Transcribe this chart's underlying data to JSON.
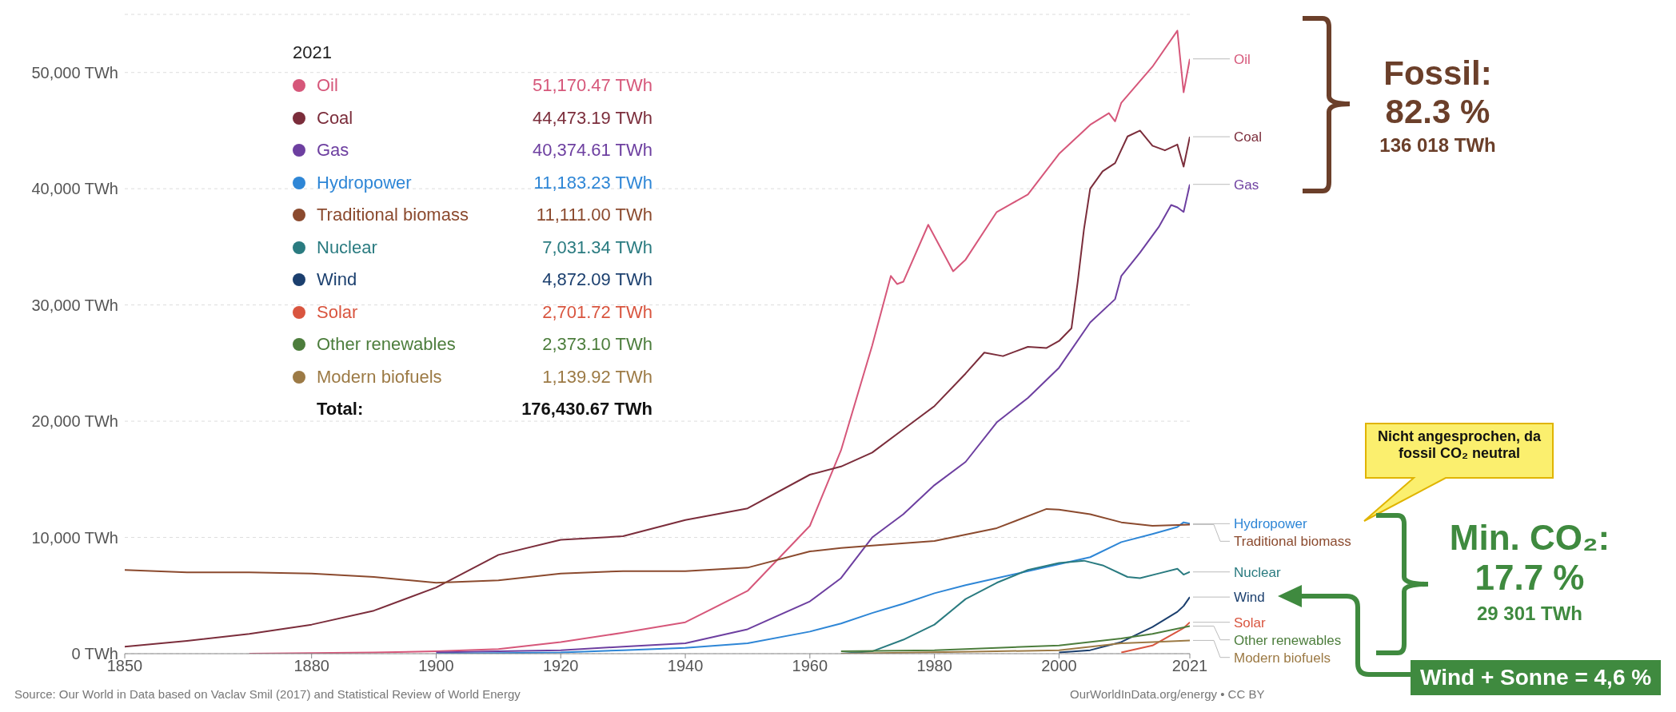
{
  "chart_data": {
    "type": "line",
    "legend_title": "2021",
    "legend": "top left",
    "grid": "y",
    "xlim": [
      1850,
      2021
    ],
    "xticks": [
      1850,
      1880,
      1900,
      1920,
      1940,
      1960,
      1980,
      2000,
      2021
    ],
    "ylim": [
      0,
      55000
    ],
    "yticks": [
      {
        "value": 0,
        "label": "0 TWh"
      },
      {
        "value": 10000,
        "label": "10,000 TWh"
      },
      {
        "value": 20000,
        "label": "20,000 TWh"
      },
      {
        "value": 30000,
        "label": "30,000 TWh"
      },
      {
        "value": 40000,
        "label": "40,000 TWh"
      },
      {
        "value": 50000,
        "label": "50,000 TWh"
      }
    ],
    "series": [
      {
        "name": "Oil",
        "color": "#d6577a",
        "x": [
          1870,
          1880,
          1890,
          1900,
          1910,
          1920,
          1930,
          1940,
          1950,
          1960,
          1965,
          1970,
          1973,
          1974,
          1975,
          1979,
          1983,
          1985,
          1990,
          1995,
          2000,
          2005,
          2008,
          2009,
          2010,
          2015,
          2019,
          2020,
          2021
        ],
        "values": [
          0,
          50,
          100,
          200,
          400,
          1000,
          1800,
          2700,
          5400,
          11000,
          17500,
          26500,
          32500,
          31800,
          32000,
          36900,
          32900,
          33900,
          38000,
          39500,
          43000,
          45500,
          46500,
          45800,
          47400,
          50500,
          53600,
          48300,
          51170.47
        ]
      },
      {
        "name": "Coal",
        "color": "#7b2d3b",
        "x": [
          1850,
          1860,
          1870,
          1880,
          1890,
          1900,
          1910,
          1920,
          1930,
          1940,
          1950,
          1960,
          1965,
          1970,
          1975,
          1980,
          1985,
          1988,
          1991,
          1995,
          1998,
          2000,
          2002,
          2003,
          2004,
          2005,
          2007,
          2009,
          2011,
          2013,
          2015,
          2017,
          2019,
          2020,
          2021
        ],
        "values": [
          600,
          1100,
          1700,
          2500,
          3700,
          5700,
          8500,
          9800,
          10100,
          11500,
          12500,
          15400,
          16100,
          17300,
          19300,
          21300,
          24100,
          25900,
          25600,
          26400,
          26300,
          26900,
          28000,
          32000,
          36500,
          40000,
          41500,
          42200,
          44500,
          45000,
          43700,
          43300,
          43800,
          41900,
          44473.19
        ]
      },
      {
        "name": "Gas",
        "color": "#6d3fa0",
        "x": [
          1900,
          1910,
          1920,
          1930,
          1940,
          1950,
          1960,
          1965,
          1970,
          1975,
          1980,
          1985,
          1990,
          1995,
          2000,
          2005,
          2009,
          2010,
          2013,
          2016,
          2018,
          2019,
          2020,
          2021
        ],
        "values": [
          100,
          200,
          300,
          600,
          900,
          2100,
          4500,
          6500,
          10000,
          12000,
          14500,
          16500,
          19900,
          22000,
          24600,
          28500,
          30500,
          32500,
          34500,
          36700,
          38600,
          38400,
          38000,
          40374.61
        ]
      },
      {
        "name": "Hydropower",
        "color": "#2e86d6",
        "x": [
          1900,
          1910,
          1920,
          1930,
          1940,
          1950,
          1960,
          1965,
          1970,
          1975,
          1980,
          1985,
          1990,
          1995,
          2000,
          2005,
          2010,
          2015,
          2019,
          2020,
          2021
        ],
        "values": [
          0,
          50,
          100,
          300,
          500,
          900,
          1900,
          2600,
          3500,
          4300,
          5200,
          5900,
          6500,
          7100,
          7700,
          8300,
          9600,
          10300,
          10900,
          11300,
          11183.23
        ]
      },
      {
        "name": "Traditional biomass",
        "color": "#8b4a2e",
        "x": [
          1850,
          1860,
          1870,
          1880,
          1890,
          1900,
          1910,
          1920,
          1930,
          1940,
          1950,
          1960,
          1965,
          1970,
          1980,
          1990,
          1998,
          2000,
          2005,
          2010,
          2015,
          2021
        ],
        "values": [
          7200,
          7000,
          7000,
          6900,
          6600,
          6100,
          6300,
          6900,
          7100,
          7100,
          7400,
          8800,
          9100,
          9300,
          9700,
          10800,
          12450,
          12400,
          12000,
          11300,
          11000,
          11111
        ]
      },
      {
        "name": "Nuclear",
        "color": "#2a7b80",
        "x": [
          1965,
          1970,
          1975,
          1980,
          1985,
          1990,
          1995,
          2000,
          2004,
          2007,
          2011,
          2013,
          2016,
          2019,
          2020,
          2021
        ],
        "values": [
          0,
          200,
          1200,
          2500,
          4700,
          6100,
          7200,
          7800,
          8000,
          7600,
          6600,
          6500,
          6900,
          7300,
          6800,
          7031.34
        ]
      },
      {
        "name": "Wind",
        "color": "#1b3f6e",
        "x": [
          2000,
          2005,
          2010,
          2015,
          2019,
          2020,
          2021
        ],
        "values": [
          100,
          300,
          1000,
          2300,
          3600,
          4100,
          4872.09
        ]
      },
      {
        "name": "Solar",
        "color": "#d9553f",
        "x": [
          2010,
          2015,
          2019,
          2020,
          2021
        ],
        "values": [
          100,
          700,
          1900,
          2200,
          2701.72
        ]
      },
      {
        "name": "Other renewables",
        "color": "#4c7d3c",
        "x": [
          1965,
          1980,
          1990,
          2000,
          2010,
          2015,
          2021
        ],
        "values": [
          200,
          300,
          500,
          700,
          1300,
          1700,
          2373.1
        ]
      },
      {
        "name": "Modern biofuels",
        "color": "#9c7a45",
        "x": [
          1965,
          1990,
          2000,
          2010,
          2015,
          2021
        ],
        "values": [
          0,
          200,
          300,
          900,
          1000,
          1139.92
        ]
      }
    ],
    "annotations": [
      "51,170.47 TWh",
      "44,473.19 TWh",
      "40,374.61 TWh",
      "11,183.23 TWh",
      "11,111.00 TWh",
      "7,031.34 TWh",
      "4,872.09 TWh",
      "2,701.72 TWh",
      "2,373.10 TWh",
      "1,139.92 TWh",
      "Total:",
      "176,430.67 TWh",
      "Fossil:",
      "82.3 %",
      "136 018 TWh",
      "Nicht angesprochen, da fossil CO₂ neutral",
      "Min. CO₂:",
      "17.7 %",
      "29 301 TWh",
      "Wind + Sonne = 4,6 %",
      "Source: Our World in Data based on Vaclav Smil (2017) and Statistical Review of World Energy",
      "OurWorldInData.org/energy • CC BY"
    ]
  }
}
